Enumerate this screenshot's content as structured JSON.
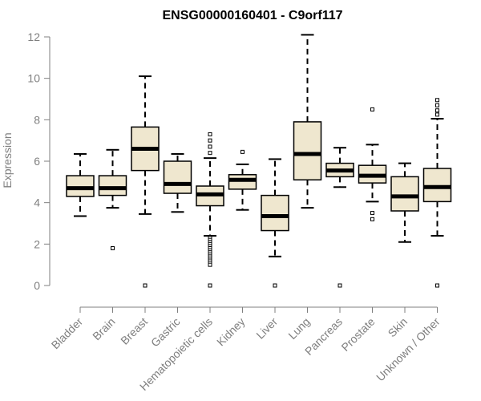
{
  "chart_data": {
    "type": "box",
    "title": "ENSG00000160401 - C9orf117",
    "xlabel": "",
    "ylabel": "Expression",
    "ylim": [
      0,
      12
    ],
    "yticks": [
      0,
      2,
      4,
      6,
      8,
      10,
      12
    ],
    "grid": false,
    "legend": "none",
    "colors": {
      "box_fill": "#efe7cf",
      "box_stroke": "#000000",
      "axis": "#7f7f7f",
      "tick_text": "#7f7f7f",
      "title": "#000000"
    },
    "categories": [
      "Bladder",
      "Brain",
      "Breast",
      "Gastric",
      "Hematopoietic cells",
      "Kidney",
      "Liver",
      "Lung",
      "Pancreas",
      "Prostate",
      "Skin",
      "Unknown / Other"
    ],
    "boxes": [
      {
        "category": "Bladder",
        "whisker_low": 3.35,
        "q1": 4.3,
        "median": 4.7,
        "q3": 5.3,
        "whisker_high": 6.35,
        "outliers": []
      },
      {
        "category": "Brain",
        "whisker_low": 3.75,
        "q1": 4.35,
        "median": 4.7,
        "q3": 5.3,
        "whisker_high": 6.55,
        "outliers": [
          1.8
        ]
      },
      {
        "category": "Breast",
        "whisker_low": 3.45,
        "q1": 5.55,
        "median": 6.6,
        "q3": 7.65,
        "whisker_high": 10.1,
        "outliers": [
          0
        ]
      },
      {
        "category": "Gastric",
        "whisker_low": 3.55,
        "q1": 4.45,
        "median": 4.9,
        "q3": 6.0,
        "whisker_high": 6.35,
        "outliers": []
      },
      {
        "category": "Hematopoietic cells",
        "whisker_low": 2.4,
        "q1": 3.85,
        "median": 4.4,
        "q3": 4.8,
        "whisker_high": 6.15,
        "outliers": [
          7.3,
          7.0,
          6.7,
          6.4,
          2.3,
          2.2,
          2.1,
          2.0,
          1.9,
          1.8,
          1.7,
          1.6,
          1.5,
          1.4,
          1.3,
          1.2,
          1.1,
          1.0,
          0
        ]
      },
      {
        "category": "Kidney",
        "whisker_low": 3.65,
        "q1": 4.65,
        "median": 5.1,
        "q3": 5.35,
        "whisker_high": 5.85,
        "outliers": [
          6.45
        ]
      },
      {
        "category": "Liver",
        "whisker_low": 1.4,
        "q1": 2.65,
        "median": 3.35,
        "q3": 4.35,
        "whisker_high": 6.1,
        "outliers": [
          0
        ]
      },
      {
        "category": "Lung",
        "whisker_low": 3.75,
        "q1": 5.1,
        "median": 6.35,
        "q3": 7.9,
        "whisker_high": 12.1,
        "outliers": []
      },
      {
        "category": "Pancreas",
        "whisker_low": 4.75,
        "q1": 5.25,
        "median": 5.55,
        "q3": 5.9,
        "whisker_high": 6.65,
        "outliers": [
          0
        ]
      },
      {
        "category": "Prostate",
        "whisker_low": 4.05,
        "q1": 4.95,
        "median": 5.3,
        "q3": 5.8,
        "whisker_high": 6.8,
        "outliers": [
          8.5,
          3.5,
          3.2
        ]
      },
      {
        "category": "Skin",
        "whisker_low": 2.1,
        "q1": 3.6,
        "median": 4.3,
        "q3": 5.25,
        "whisker_high": 5.9,
        "outliers": []
      },
      {
        "category": "Unknown / Other",
        "whisker_low": 2.4,
        "q1": 4.05,
        "median": 4.75,
        "q3": 5.65,
        "whisker_high": 8.05,
        "outliers": [
          8.95,
          8.7,
          8.45,
          8.25,
          0
        ]
      }
    ]
  }
}
